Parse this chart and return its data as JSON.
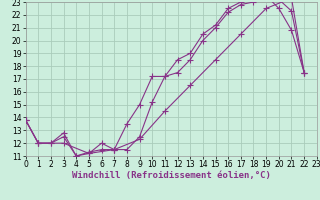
{
  "xlabel": "Windchill (Refroidissement éolien,°C)",
  "bg_color": "#cceedd",
  "grid_color": "#aaccbb",
  "line_color": "#883388",
  "xlim": [
    0,
    23
  ],
  "ylim": [
    11,
    23
  ],
  "xticks": [
    0,
    1,
    2,
    3,
    4,
    5,
    6,
    7,
    8,
    9,
    10,
    11,
    12,
    13,
    14,
    15,
    16,
    17,
    18,
    19,
    20,
    21,
    22,
    23
  ],
  "yticks": [
    11,
    12,
    13,
    14,
    15,
    16,
    17,
    18,
    19,
    20,
    21,
    22,
    23
  ],
  "curve1_x": [
    0,
    1,
    2,
    3,
    4,
    5,
    6,
    7,
    8,
    9,
    10,
    11,
    12,
    13,
    14,
    15,
    16,
    17,
    18,
    19,
    20,
    21,
    22
  ],
  "curve1_y": [
    13.8,
    12.0,
    12.0,
    12.5,
    11.0,
    11.3,
    11.5,
    11.5,
    13.5,
    15.0,
    17.2,
    17.2,
    18.5,
    19.0,
    20.5,
    21.2,
    22.5,
    23.0,
    23.2,
    23.5,
    23.2,
    22.3,
    17.5
  ],
  "curve2_x": [
    0,
    1,
    2,
    3,
    4,
    5,
    6,
    7,
    8,
    9,
    10,
    11,
    12,
    13,
    14,
    15,
    16,
    17,
    18,
    19,
    20,
    21,
    22
  ],
  "curve2_y": [
    13.8,
    12.0,
    12.0,
    12.8,
    11.0,
    11.2,
    12.0,
    11.5,
    11.5,
    12.5,
    15.2,
    17.2,
    17.5,
    18.5,
    20.0,
    21.0,
    22.2,
    22.8,
    23.0,
    23.5,
    22.5,
    20.8,
    17.5
  ],
  "curve3_x": [
    0,
    1,
    3,
    5,
    7,
    9,
    11,
    13,
    15,
    17,
    19,
    21,
    22
  ],
  "curve3_y": [
    13.8,
    12.0,
    12.0,
    11.2,
    11.5,
    12.3,
    14.5,
    16.5,
    18.5,
    20.5,
    22.5,
    23.3,
    17.5
  ],
  "tick_fontsize": 5.5,
  "xlabel_fontsize": 6.5
}
